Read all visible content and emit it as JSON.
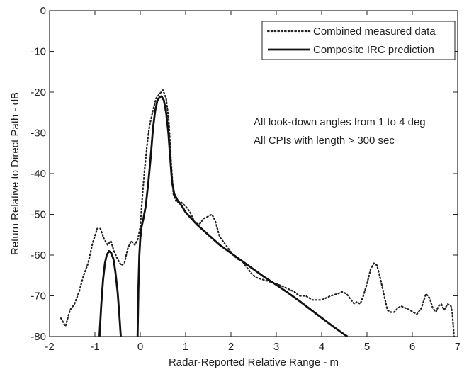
{
  "chart_data": {
    "type": "line",
    "xlabel": "Radar-Reported Relative Range - m",
    "ylabel": "Return Relative to Direct Path - dB",
    "xlim": [
      -2,
      7
    ],
    "ylim": [
      -80,
      0
    ],
    "xticks": [
      -2,
      -1,
      0,
      1,
      2,
      3,
      4,
      5,
      6,
      7
    ],
    "yticks": [
      0,
      -10,
      -20,
      -30,
      -40,
      -50,
      -60,
      -70,
      -80
    ],
    "grid": false,
    "legend_position": "top-right",
    "annotations": [
      "All look-down angles from 1 to 4 deg",
      "All CPIs with length > 300 sec"
    ],
    "series": [
      {
        "name": "Combined measured data",
        "style": "dotted",
        "points": [
          [
            -1.75,
            -75.5
          ],
          [
            -1.65,
            -77.5
          ],
          [
            -1.55,
            -73.5
          ],
          [
            -1.45,
            -72
          ],
          [
            -1.35,
            -69
          ],
          [
            -1.25,
            -65
          ],
          [
            -1.15,
            -62
          ],
          [
            -1.05,
            -57
          ],
          [
            -0.95,
            -53.5
          ],
          [
            -0.88,
            -53.5
          ],
          [
            -0.8,
            -56
          ],
          [
            -0.72,
            -57.5
          ],
          [
            -0.65,
            -56.5
          ],
          [
            -0.58,
            -59
          ],
          [
            -0.5,
            -61
          ],
          [
            -0.42,
            -62.5
          ],
          [
            -0.35,
            -62
          ],
          [
            -0.28,
            -58.5
          ],
          [
            -0.2,
            -56.5
          ],
          [
            -0.12,
            -57.5
          ],
          [
            -0.05,
            -56
          ],
          [
            0.0,
            -53
          ],
          [
            0.05,
            -45
          ],
          [
            0.1,
            -38.5
          ],
          [
            0.15,
            -33
          ],
          [
            0.2,
            -28.5
          ],
          [
            0.28,
            -24.5
          ],
          [
            0.35,
            -21.5
          ],
          [
            0.42,
            -20.5
          ],
          [
            0.5,
            -19.5
          ],
          [
            0.57,
            -21.5
          ],
          [
            0.63,
            -27
          ],
          [
            0.68,
            -37
          ],
          [
            0.73,
            -45
          ],
          [
            0.8,
            -47
          ],
          [
            0.9,
            -47
          ],
          [
            1.0,
            -48
          ],
          [
            1.1,
            -49.5
          ],
          [
            1.2,
            -52
          ],
          [
            1.3,
            -52.5
          ],
          [
            1.4,
            -51
          ],
          [
            1.5,
            -50.5
          ],
          [
            1.58,
            -50
          ],
          [
            1.65,
            -51.5
          ],
          [
            1.75,
            -55.5
          ],
          [
            1.85,
            -57
          ],
          [
            1.95,
            -58.5
          ],
          [
            2.05,
            -60
          ],
          [
            2.15,
            -61
          ],
          [
            2.25,
            -61.5
          ],
          [
            2.35,
            -63
          ],
          [
            2.45,
            -64.5
          ],
          [
            2.55,
            -65.5
          ],
          [
            2.7,
            -66
          ],
          [
            2.85,
            -66.5
          ],
          [
            3.0,
            -67
          ],
          [
            3.1,
            -67.5
          ],
          [
            3.2,
            -68
          ],
          [
            3.3,
            -68.5
          ],
          [
            3.4,
            -69
          ],
          [
            3.5,
            -70
          ],
          [
            3.65,
            -70
          ],
          [
            3.8,
            -71
          ],
          [
            3.9,
            -71
          ],
          [
            4.0,
            -71
          ],
          [
            4.1,
            -70.5
          ],
          [
            4.2,
            -70
          ],
          [
            4.35,
            -69.5
          ],
          [
            4.45,
            -69
          ],
          [
            4.55,
            -69.5
          ],
          [
            4.65,
            -71
          ],
          [
            4.72,
            -72
          ],
          [
            4.78,
            -71.5
          ],
          [
            4.85,
            -72
          ],
          [
            4.92,
            -70
          ],
          [
            5.0,
            -67
          ],
          [
            5.08,
            -63.5
          ],
          [
            5.15,
            -62
          ],
          [
            5.22,
            -62.5
          ],
          [
            5.3,
            -66
          ],
          [
            5.38,
            -70
          ],
          [
            5.45,
            -73.5
          ],
          [
            5.52,
            -74
          ],
          [
            5.6,
            -74
          ],
          [
            5.68,
            -73
          ],
          [
            5.75,
            -72.5
          ],
          [
            5.85,
            -73
          ],
          [
            5.95,
            -73.5
          ],
          [
            6.02,
            -74
          ],
          [
            6.1,
            -74.5
          ],
          [
            6.2,
            -73
          ],
          [
            6.3,
            -69.5
          ],
          [
            6.38,
            -70.5
          ],
          [
            6.45,
            -73
          ],
          [
            6.52,
            -74
          ],
          [
            6.58,
            -72.5
          ],
          [
            6.64,
            -72
          ],
          [
            6.7,
            -73.5
          ],
          [
            6.78,
            -72
          ],
          [
            6.85,
            -72.5
          ],
          [
            6.88,
            -74
          ],
          [
            6.92,
            -80
          ]
        ]
      },
      {
        "name": "Composite IRC prediction",
        "style": "solid",
        "segments": [
          [
            [
              -0.9,
              -80
            ],
            [
              -0.86,
              -72
            ],
            [
              -0.82,
              -66
            ],
            [
              -0.78,
              -62
            ],
            [
              -0.74,
              -60
            ],
            [
              -0.69,
              -59
            ],
            [
              -0.64,
              -59.5
            ],
            [
              -0.59,
              -61
            ],
            [
              -0.55,
              -64
            ],
            [
              -0.5,
              -69
            ],
            [
              -0.46,
              -75
            ],
            [
              -0.43,
              -80
            ]
          ],
          [
            [
              -0.06,
              -80
            ],
            [
              -0.04,
              -68
            ],
            [
              -0.02,
              -60
            ],
            [
              0.0,
              -56
            ],
            [
              0.03,
              -53
            ],
            [
              0.07,
              -51
            ],
            [
              0.12,
              -48
            ],
            [
              0.18,
              -42
            ],
            [
              0.23,
              -36
            ],
            [
              0.28,
              -29
            ],
            [
              0.33,
              -24.5
            ],
            [
              0.38,
              -22
            ],
            [
              0.43,
              -21.2
            ],
            [
              0.47,
              -21
            ],
            [
              0.52,
              -22
            ],
            [
              0.57,
              -25
            ],
            [
              0.62,
              -30
            ],
            [
              0.66,
              -36
            ],
            [
              0.7,
              -42
            ],
            [
              0.75,
              -45
            ],
            [
              0.82,
              -46.5
            ],
            [
              0.92,
              -48
            ],
            [
              1.0,
              -49.5
            ],
            [
              1.25,
              -52.5
            ],
            [
              1.5,
              -55
            ],
            [
              1.75,
              -57.5
            ],
            [
              2.0,
              -59.5
            ],
            [
              2.25,
              -61.5
            ],
            [
              2.5,
              -63.5
            ],
            [
              2.75,
              -65.5
            ],
            [
              3.0,
              -67.3
            ],
            [
              3.25,
              -69.2
            ],
            [
              3.5,
              -71.2
            ],
            [
              3.75,
              -73.3
            ],
            [
              4.0,
              -75.4
            ],
            [
              4.25,
              -77.5
            ],
            [
              4.5,
              -79.5
            ],
            [
              4.57,
              -80
            ]
          ]
        ]
      }
    ]
  }
}
